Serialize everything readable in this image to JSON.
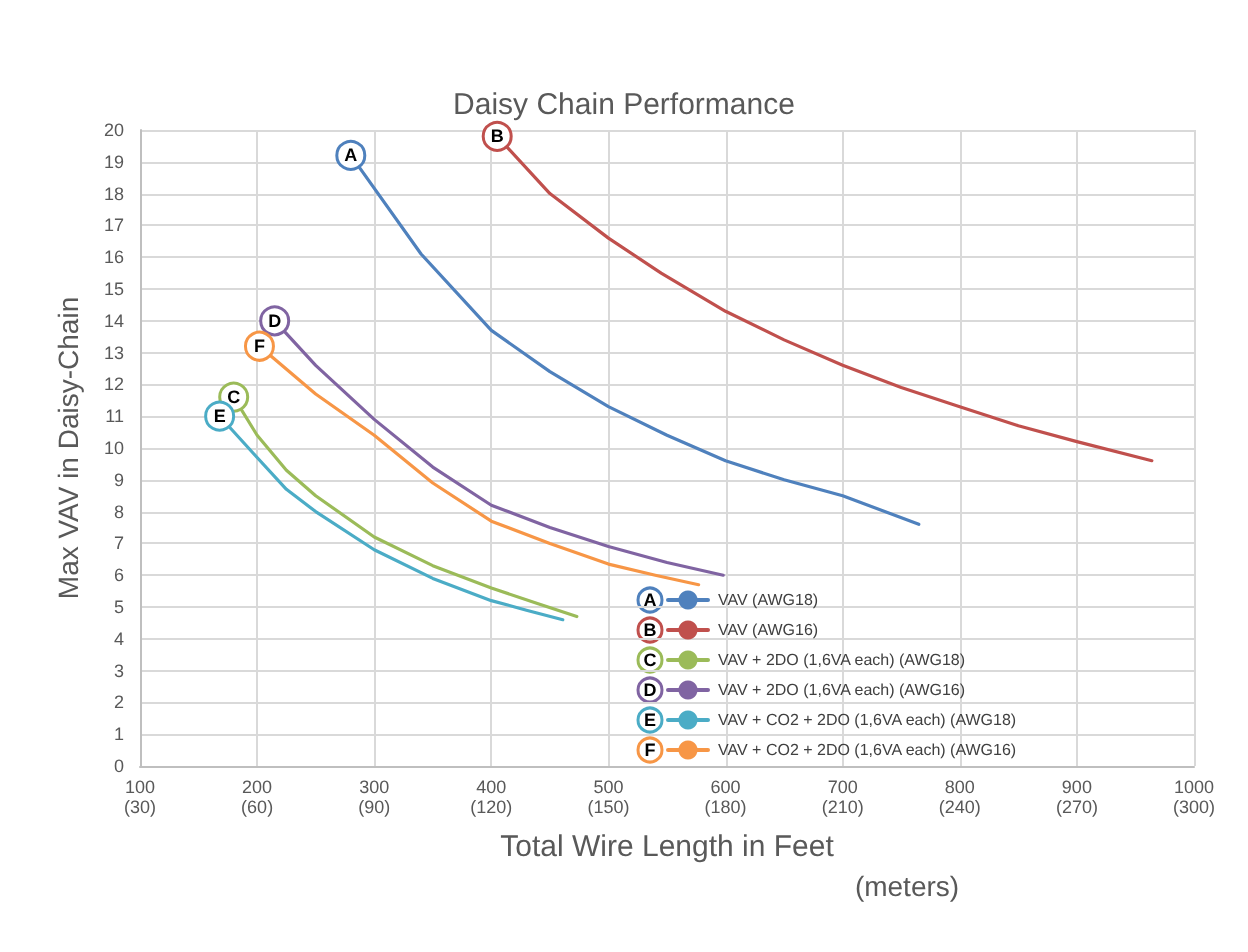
{
  "chart_data": {
    "type": "line",
    "title": "Daisy Chain Performance",
    "xlabel": "Total Wire Length in Feet",
    "x2label": "(meters)",
    "ylabel": "Max VAV in Daisy-Chain",
    "series": [
      {
        "name": "VAV (AWG18)",
        "color": "#4f81bd",
        "x": [
          280,
          340,
          400,
          450,
          500,
          550,
          600,
          650,
          700,
          765
        ],
        "values": [
          19.2,
          16.1,
          13.7,
          12.4,
          11.3,
          10.4,
          9.6,
          9.0,
          8.5,
          7.6
        ]
      },
      {
        "name": "VAV (AWG16)",
        "color": "#c0504d",
        "x": [
          405,
          450,
          500,
          545,
          600,
          650,
          700,
          750,
          800,
          850,
          900,
          964
        ],
        "values": [
          19.8,
          18.0,
          16.6,
          15.5,
          14.3,
          13.4,
          12.6,
          11.9,
          11.3,
          10.7,
          10.2,
          9.6
        ]
      },
      {
        "name": "VAV + 2DO (1,6VA each) (AWG18)",
        "color": "#9bbb59",
        "x": [
          180,
          200,
          225,
          250,
          300,
          350,
          400,
          440,
          473
        ],
        "values": [
          11.6,
          10.4,
          9.3,
          8.5,
          7.2,
          6.3,
          5.6,
          5.1,
          4.7
        ]
      },
      {
        "name": "VAV + 2DO (1,6VA each) (AWG16)",
        "color": "#8064a2",
        "x": [
          215,
          250,
          300,
          350,
          400,
          450,
          500,
          550,
          598
        ],
        "values": [
          14.0,
          12.6,
          10.9,
          9.4,
          8.2,
          7.5,
          6.9,
          6.4,
          6.0
        ]
      },
      {
        "name": "VAV + CO2 + 2DO (1,6VA each) (AWG18)",
        "color": "#4bacc6",
        "x": [
          168,
          200,
          225,
          250,
          300,
          350,
          400,
          430,
          461
        ],
        "values": [
          11.0,
          9.7,
          8.7,
          8.0,
          6.8,
          5.9,
          5.2,
          4.9,
          4.6
        ]
      },
      {
        "name": "VAV + CO2 + 2DO (1,6VA each) (AWG16)",
        "color": "#f79646",
        "x": [
          202,
          250,
          300,
          350,
          400,
          450,
          500,
          540,
          577
        ],
        "values": [
          13.2,
          11.7,
          10.4,
          8.9,
          7.7,
          7.0,
          6.35,
          6.0,
          5.7
        ]
      }
    ],
    "annotations": [
      {
        "text": "A",
        "x": 280,
        "y": 19.2
      },
      {
        "text": "B",
        "x": 405,
        "y": 19.8
      },
      {
        "text": "C",
        "x": 180,
        "y": 11.6
      },
      {
        "text": "D",
        "x": 215,
        "y": 14.0
      },
      {
        "text": "E",
        "x": 168,
        "y": 11.0
      },
      {
        "text": "F",
        "x": 202,
        "y": 13.2
      }
    ],
    "xlim": [
      100,
      1000
    ],
    "xticks": [
      100,
      200,
      300,
      400,
      500,
      600,
      700,
      800,
      900,
      1000
    ],
    "x2lim": [
      30,
      300
    ],
    "x2ticks": [
      {
        "value": 30,
        "label": "(30)"
      },
      {
        "value": 60,
        "label": "(60)"
      },
      {
        "value": 90,
        "label": "(90)"
      },
      {
        "value": 120,
        "label": "(120)"
      },
      {
        "value": 150,
        "label": "(150)"
      },
      {
        "value": 180,
        "label": "(180)"
      },
      {
        "value": 210,
        "label": "(210)"
      },
      {
        "value": 240,
        "label": "(240)"
      },
      {
        "value": 270,
        "label": "(270)"
      },
      {
        "value": 300,
        "label": "(300)"
      }
    ],
    "ylim": [
      0,
      20
    ],
    "yticks": [
      0,
      1,
      2,
      3,
      4,
      5,
      6,
      7,
      8,
      9,
      10,
      11,
      12,
      13,
      14,
      15,
      16,
      17,
      18,
      19,
      20
    ],
    "grid": true,
    "legend": "bottom right",
    "marker": "none",
    "line_style": "solid"
  }
}
